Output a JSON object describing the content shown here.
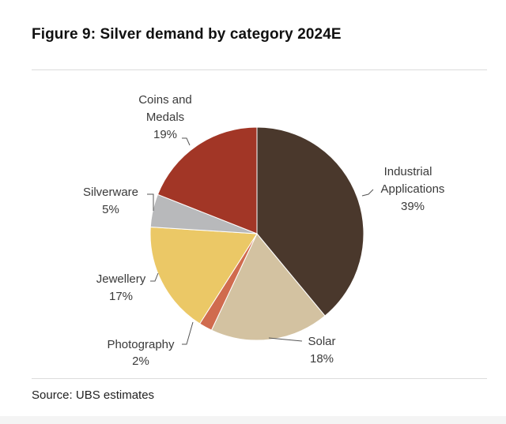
{
  "figure": {
    "title": "Figure 9: Silver demand by category 2024E",
    "source": "Source: UBS estimates"
  },
  "chart_data": {
    "type": "pie",
    "title": "Figure 9: Silver demand by category 2024E",
    "start": "12 o'clock",
    "direction": "clockwise",
    "slices": [
      {
        "name": "Industrial Applications",
        "label_lines": [
          "Industrial",
          "Applications"
        ],
        "value": 39,
        "value_label": "39%",
        "color": "#4a382c"
      },
      {
        "name": "Solar",
        "label_lines": [
          "Solar"
        ],
        "value": 18,
        "value_label": "18%",
        "color": "#d3c2a1"
      },
      {
        "name": "Photography",
        "label_lines": [
          "Photography"
        ],
        "value": 2,
        "value_label": "2%",
        "color": "#d06b4e"
      },
      {
        "name": "Jewellery",
        "label_lines": [
          "Jewellery"
        ],
        "value": 17,
        "value_label": "17%",
        "color": "#ebc866"
      },
      {
        "name": "Silverware",
        "label_lines": [
          "Silverware"
        ],
        "value": 5,
        "value_label": "5%",
        "color": "#b8b9bb"
      },
      {
        "name": "Coins and Medals",
        "label_lines": [
          "Coins and",
          "Medals"
        ],
        "value": 19,
        "value_label": "19%",
        "color": "#a23626"
      }
    ]
  }
}
